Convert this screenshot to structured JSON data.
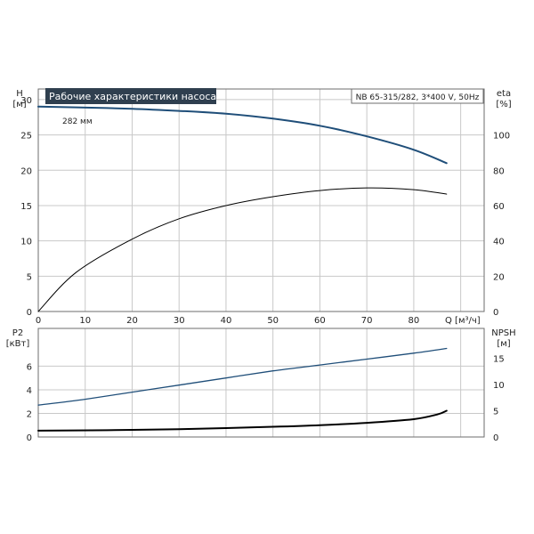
{
  "chart_data": {
    "type": "line",
    "title": "Рабочие характеристики насоса",
    "model_label": "NB 65-315/282, 3*400 V, 50Hz",
    "impeller_label": "282 мм",
    "colors": {
      "head": "#1f4e79",
      "eta": "#000000",
      "p2": "#1f4e79",
      "npsh": "#000000",
      "title_bg": "#2f3f4f",
      "grid": "#c8c8c8"
    },
    "x_axis": {
      "label": "Q [м³/ч]",
      "range": [
        0,
        95
      ],
      "ticks": [
        0,
        10,
        20,
        30,
        40,
        50,
        60,
        70,
        80
      ]
    },
    "top_chart": {
      "left_axis": {
        "label": "H",
        "unit": "[м]",
        "range": [
          0,
          31.5
        ],
        "ticks": [
          0,
          5,
          10,
          15,
          20,
          25,
          30
        ]
      },
      "right_axis": {
        "label": "eta",
        "unit": "[%]",
        "range": [
          0,
          126
        ],
        "ticks": [
          0,
          20,
          40,
          60,
          80,
          100
        ]
      },
      "series": [
        {
          "axis": "left",
          "color_key": "head",
          "x": [
            0,
            8,
            20,
            30,
            40,
            50,
            60,
            70,
            80,
            87
          ],
          "y": [
            29,
            28.9,
            28.7,
            28.4,
            28,
            27.3,
            26.3,
            24.8,
            22.9,
            21
          ]
        },
        {
          "axis": "right",
          "color_key": "eta",
          "x": [
            0,
            8,
            20,
            30,
            40,
            50,
            60,
            70,
            80,
            87
          ],
          "y": [
            0,
            22,
            41,
            52.5,
            60,
            65,
            68.5,
            70,
            69,
            66.5
          ]
        }
      ]
    },
    "bottom_chart": {
      "left_axis": {
        "label": "P2",
        "unit": "[кВт]",
        "range": [
          0,
          9.2
        ],
        "ticks": [
          0,
          2,
          4,
          6
        ]
      },
      "right_axis": {
        "label": "NPSH",
        "unit": "[м]",
        "range": [
          0,
          20.7
        ],
        "ticks": [
          0,
          5,
          10,
          15
        ]
      },
      "series": [
        {
          "axis": "left",
          "color_key": "p2",
          "x": [
            0,
            10,
            20,
            30,
            40,
            50,
            60,
            70,
            80,
            87
          ],
          "y": [
            2.7,
            3.2,
            3.8,
            4.4,
            5,
            5.6,
            6.1,
            6.6,
            7.1,
            7.5
          ]
        },
        {
          "axis": "right",
          "color_key": "npsh",
          "x": [
            0,
            8,
            20,
            30,
            40,
            50,
            60,
            70,
            80,
            85,
            87
          ],
          "y": [
            1.2,
            1.25,
            1.35,
            1.5,
            1.7,
            1.95,
            2.25,
            2.7,
            3.4,
            4.3,
            5
          ]
        }
      ]
    }
  }
}
